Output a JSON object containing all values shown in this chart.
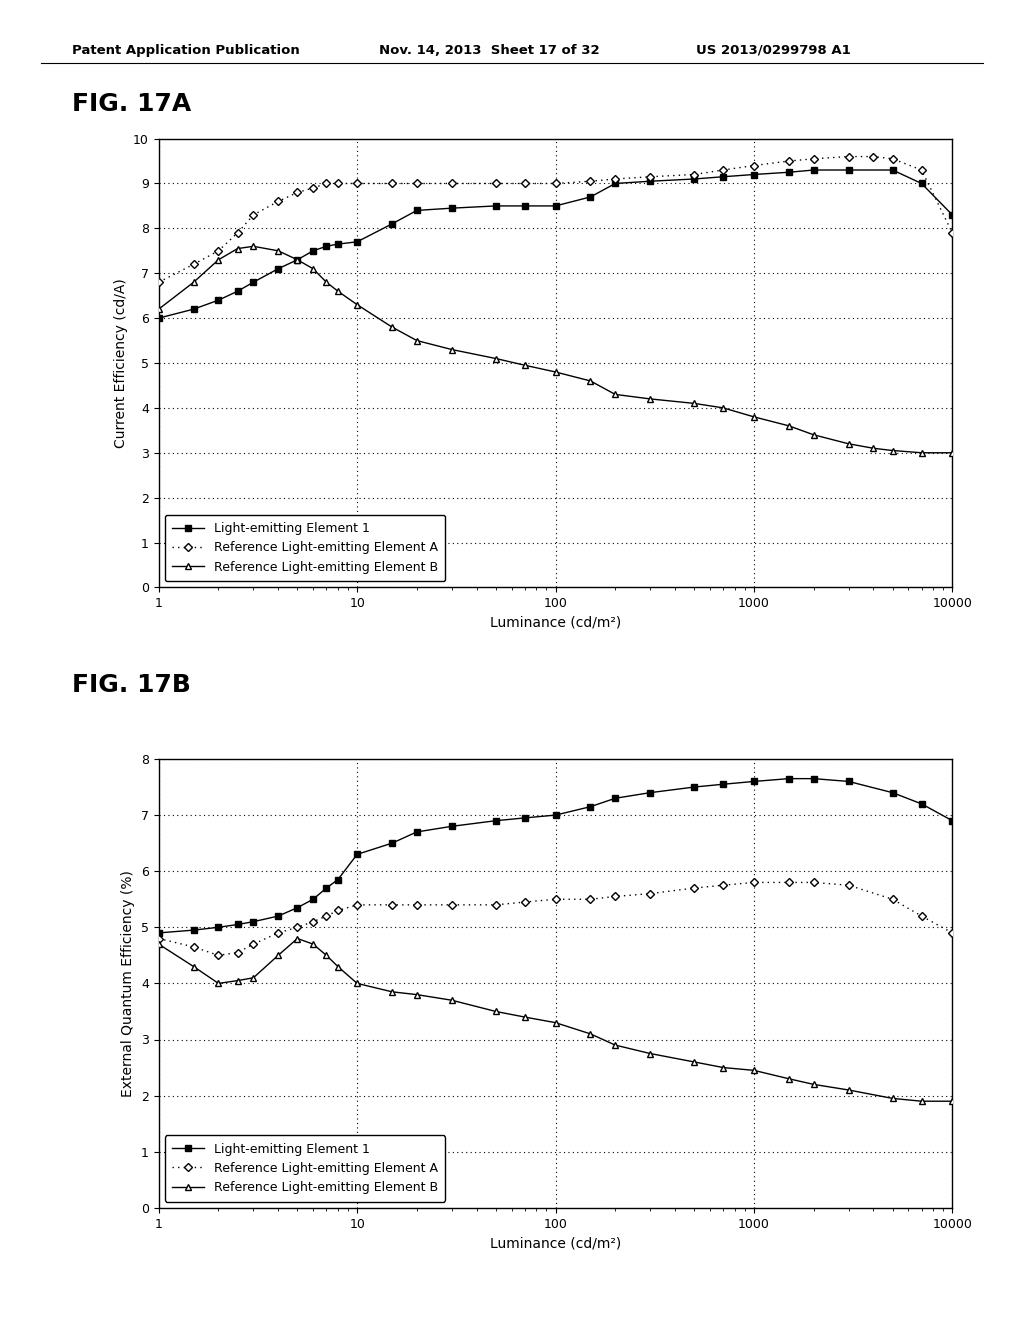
{
  "header_left": "Patent Application Publication",
  "header_mid": "Nov. 14, 2013  Sheet 17 of 32",
  "header_right": "US 2013/0299798 A1",
  "fig_a_label": "FIG. 17A",
  "fig_b_label": "FIG. 17B",
  "fig_a_ylabel": "Current Efficiency (cd/A)",
  "fig_b_ylabel": "External Quantum Efficiency (%)",
  "xlabel": "Luminance (cd/m²)",
  "fig_a_ylim": [
    0,
    10
  ],
  "fig_b_ylim": [
    0,
    8
  ],
  "fig_a_yticks": [
    0,
    1,
    2,
    3,
    4,
    5,
    6,
    7,
    8,
    9,
    10
  ],
  "fig_b_yticks": [
    0,
    1,
    2,
    3,
    4,
    5,
    6,
    7,
    8
  ],
  "background_color": "#ffffff",
  "fig_a_elem1_x": [
    1,
    1.5,
    2,
    2.5,
    3,
    4,
    5,
    6,
    7,
    8,
    10,
    15,
    20,
    30,
    50,
    70,
    100,
    150,
    200,
    300,
    500,
    700,
    1000,
    1500,
    2000,
    3000,
    5000,
    7000,
    10000
  ],
  "fig_a_elem1_y": [
    6.0,
    6.2,
    6.4,
    6.6,
    6.8,
    7.1,
    7.3,
    7.5,
    7.6,
    7.65,
    7.7,
    8.1,
    8.4,
    8.45,
    8.5,
    8.5,
    8.5,
    8.7,
    9.0,
    9.05,
    9.1,
    9.15,
    9.2,
    9.25,
    9.3,
    9.3,
    9.3,
    9.0,
    8.3
  ],
  "fig_a_elemA_x": [
    1,
    1.5,
    2,
    2.5,
    3,
    4,
    5,
    6,
    7,
    8,
    10,
    15,
    20,
    30,
    50,
    70,
    100,
    150,
    200,
    300,
    500,
    700,
    1000,
    1500,
    2000,
    3000,
    4000,
    5000,
    7000,
    10000
  ],
  "fig_a_elemA_y": [
    6.8,
    7.2,
    7.5,
    7.9,
    8.3,
    8.6,
    8.8,
    8.9,
    9.0,
    9.0,
    9.0,
    9.0,
    9.0,
    9.0,
    9.0,
    9.0,
    9.0,
    9.05,
    9.1,
    9.15,
    9.2,
    9.3,
    9.4,
    9.5,
    9.55,
    9.6,
    9.6,
    9.55,
    9.3,
    7.9
  ],
  "fig_a_elemB_x": [
    1,
    1.5,
    2,
    2.5,
    3,
    4,
    5,
    6,
    7,
    8,
    10,
    15,
    20,
    30,
    50,
    70,
    100,
    150,
    200,
    300,
    500,
    700,
    1000,
    1500,
    2000,
    3000,
    4000,
    5000,
    7000,
    10000
  ],
  "fig_a_elemB_y": [
    6.2,
    6.8,
    7.3,
    7.55,
    7.6,
    7.5,
    7.3,
    7.1,
    6.8,
    6.6,
    6.3,
    5.8,
    5.5,
    5.3,
    5.1,
    4.95,
    4.8,
    4.6,
    4.3,
    4.2,
    4.1,
    4.0,
    3.8,
    3.6,
    3.4,
    3.2,
    3.1,
    3.05,
    3.0,
    3.0
  ],
  "fig_b_elem1_x": [
    1,
    1.5,
    2,
    2.5,
    3,
    4,
    5,
    6,
    7,
    8,
    10,
    15,
    20,
    30,
    50,
    70,
    100,
    150,
    200,
    300,
    500,
    700,
    1000,
    1500,
    2000,
    3000,
    5000,
    7000,
    10000
  ],
  "fig_b_elem1_y": [
    4.9,
    4.95,
    5.0,
    5.05,
    5.1,
    5.2,
    5.35,
    5.5,
    5.7,
    5.85,
    6.3,
    6.5,
    6.7,
    6.8,
    6.9,
    6.95,
    7.0,
    7.15,
    7.3,
    7.4,
    7.5,
    7.55,
    7.6,
    7.65,
    7.65,
    7.6,
    7.4,
    7.2,
    6.9
  ],
  "fig_b_elemA_x": [
    1,
    1.5,
    2,
    2.5,
    3,
    4,
    5,
    6,
    7,
    8,
    10,
    15,
    20,
    30,
    50,
    70,
    100,
    150,
    200,
    300,
    500,
    700,
    1000,
    1500,
    2000,
    3000,
    5000,
    7000,
    10000
  ],
  "fig_b_elemA_y": [
    4.8,
    4.65,
    4.5,
    4.55,
    4.7,
    4.9,
    5.0,
    5.1,
    5.2,
    5.3,
    5.4,
    5.4,
    5.4,
    5.4,
    5.4,
    5.45,
    5.5,
    5.5,
    5.55,
    5.6,
    5.7,
    5.75,
    5.8,
    5.8,
    5.8,
    5.75,
    5.5,
    5.2,
    4.9
  ],
  "fig_b_elemB_x": [
    1,
    1.5,
    2,
    2.5,
    3,
    4,
    5,
    6,
    7,
    8,
    10,
    15,
    20,
    30,
    50,
    70,
    100,
    150,
    200,
    300,
    500,
    700,
    1000,
    1500,
    2000,
    3000,
    5000,
    7000,
    10000
  ],
  "fig_b_elemB_y": [
    4.7,
    4.3,
    4.0,
    4.05,
    4.1,
    4.5,
    4.8,
    4.7,
    4.5,
    4.3,
    4.0,
    3.85,
    3.8,
    3.7,
    3.5,
    3.4,
    3.3,
    3.1,
    2.9,
    2.75,
    2.6,
    2.5,
    2.45,
    2.3,
    2.2,
    2.1,
    1.95,
    1.9,
    1.9
  ],
  "legend_labels": [
    "Light-emitting Element 1",
    "Reference Light-emitting Element A",
    "Reference Light-emitting Element B"
  ]
}
